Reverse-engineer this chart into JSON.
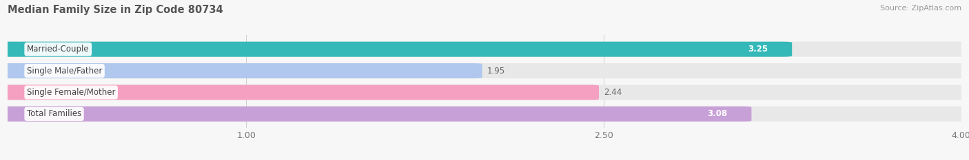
{
  "title": "Median Family Size in Zip Code 80734",
  "source": "Source: ZipAtlas.com",
  "categories": [
    "Married-Couple",
    "Single Male/Father",
    "Single Female/Mother",
    "Total Families"
  ],
  "values": [
    3.25,
    1.95,
    2.44,
    3.08
  ],
  "bar_colors": [
    "#35b8b8",
    "#b0c8ee",
    "#f5a0c0",
    "#c8a0d8"
  ],
  "label_value_white": [
    true,
    false,
    false,
    true
  ],
  "xlim_data": [
    0.0,
    4.0
  ],
  "xaxis_min": 1.0,
  "xaxis_max": 4.0,
  "xticks": [
    1.0,
    2.5,
    4.0
  ],
  "bar_height": 0.62,
  "track_color": "#e8e8e8",
  "background_color": "#f7f7f7",
  "title_fontsize": 10.5,
  "source_fontsize": 8,
  "label_fontsize": 8.5,
  "value_fontsize": 8.5
}
